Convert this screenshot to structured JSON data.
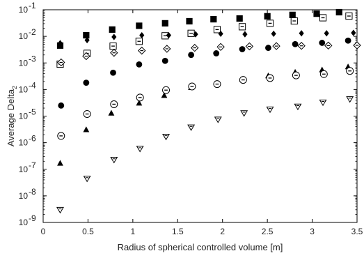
{
  "chart_data": {
    "type": "scatter",
    "xlabel": "Radius of spherical controlled volume [m]",
    "ylabel": "Average Delta",
    "ylabel_subscript": "2",
    "xlim": [
      0,
      3.5
    ],
    "ylim": [
      1e-09,
      0.1
    ],
    "yscale": "log",
    "grid": false,
    "xticks": [
      {
        "value": 0,
        "label": "0"
      },
      {
        "value": 0.5,
        "label": "0.5"
      },
      {
        "value": 1,
        "label": "1"
      },
      {
        "value": 1.5,
        "label": "1.5"
      },
      {
        "value": 2,
        "label": "2"
      },
      {
        "value": 2.5,
        "label": "2.5"
      },
      {
        "value": 3,
        "label": "3"
      },
      {
        "value": 3.5,
        "label": "3.5"
      }
    ],
    "yticks": [
      {
        "value": 1e-09,
        "base": "10",
        "exp": "-9"
      },
      {
        "value": 1e-08,
        "base": "10",
        "exp": "-8"
      },
      {
        "value": 1e-07,
        "base": "10",
        "exp": "-7"
      },
      {
        "value": 1e-06,
        "base": "10",
        "exp": "-6"
      },
      {
        "value": 1e-05,
        "base": "10",
        "exp": "-5"
      },
      {
        "value": 0.0001,
        "base": "10",
        "exp": "-4"
      },
      {
        "value": 0.001,
        "base": "10",
        "exp": "-3"
      },
      {
        "value": 0.01,
        "base": "10",
        "exp": "-2"
      },
      {
        "value": 0.1,
        "base": "10",
        "exp": "-1"
      }
    ],
    "series": [
      {
        "marker": "filled-square",
        "x": [
          0.19,
          0.48,
          0.77,
          1.07,
          1.36,
          1.63,
          1.9,
          2.19,
          2.5,
          2.78,
          3.05,
          3.3
        ],
        "y": [
          0.0045,
          0.011,
          0.018,
          0.025,
          0.031,
          0.037,
          0.044,
          0.047,
          0.057,
          0.064,
          0.071,
          0.081
        ]
      },
      {
        "marker": "open-square-dash",
        "x": [
          0.19,
          0.49,
          0.78,
          1.07,
          1.36,
          1.65,
          1.94,
          2.22,
          2.53,
          2.8,
          3.12,
          3.41
        ],
        "y": [
          0.0009,
          0.0023,
          0.0043,
          0.0065,
          0.0105,
          0.013,
          0.018,
          0.023,
          0.031,
          0.038,
          0.05,
          0.058
        ]
      },
      {
        "marker": "filled-diamond",
        "x": [
          0.19,
          0.49,
          0.79,
          1.1,
          1.4,
          1.7,
          1.98,
          2.25,
          2.57,
          2.88,
          3.16,
          3.46
        ],
        "y": [
          0.0055,
          0.0072,
          0.0095,
          0.011,
          0.011,
          0.012,
          0.0125,
          0.012,
          0.0125,
          0.013,
          0.013,
          0.0135
        ]
      },
      {
        "marker": "open-diamond-dash",
        "x": [
          0.2,
          0.48,
          0.79,
          1.1,
          1.38,
          1.69,
          1.98,
          2.3,
          2.6,
          2.88,
          3.18,
          3.5
        ],
        "y": [
          0.00105,
          0.0018,
          0.0024,
          0.0029,
          0.0034,
          0.0037,
          0.004,
          0.0042,
          0.0043,
          0.0044,
          0.0045,
          0.0046
        ]
      },
      {
        "marker": "filled-circle",
        "x": [
          0.2,
          0.48,
          0.78,
          1.07,
          1.36,
          1.65,
          1.93,
          2.22,
          2.51,
          2.81,
          3.11,
          3.4
        ],
        "y": [
          2.5e-05,
          0.00018,
          0.00043,
          0.00088,
          0.0012,
          0.002,
          0.0023,
          0.0033,
          0.0037,
          0.0051,
          0.0057,
          0.0069
        ]
      },
      {
        "marker": "filled-triangle",
        "x": [
          0.19,
          0.48,
          0.76,
          1.07,
          1.35,
          1.65,
          1.94,
          2.22,
          2.51,
          2.81,
          3.11,
          3.4
        ],
        "y": [
          1.7e-07,
          3.1e-06,
          1.3e-05,
          3.1e-05,
          6e-05,
          0.00012,
          0.00017,
          0.00024,
          0.00033,
          0.00045,
          0.00055,
          0.00072
        ]
      },
      {
        "marker": "open-circle-dash",
        "x": [
          0.2,
          0.49,
          0.79,
          1.08,
          1.37,
          1.66,
          1.94,
          2.23,
          2.53,
          2.82,
          3.13,
          3.42
        ],
        "y": [
          1.8e-06,
          1.2e-05,
          2.8e-05,
          5e-05,
          9.5e-05,
          0.00013,
          0.00016,
          0.00023,
          0.00027,
          0.00034,
          0.00038,
          0.0005
        ]
      },
      {
        "marker": "open-triangle-down",
        "x": [
          0.19,
          0.49,
          0.79,
          1.08,
          1.37,
          1.65,
          1.95,
          2.24,
          2.53,
          2.84,
          3.12,
          3.42
        ],
        "y": [
          3e-09,
          4.5e-08,
          2.3e-07,
          6e-07,
          1.7e-06,
          3.8e-06,
          7.5e-06,
          1.3e-05,
          1.8e-05,
          2.3e-05,
          3.3e-05,
          4.4e-05
        ]
      }
    ]
  }
}
